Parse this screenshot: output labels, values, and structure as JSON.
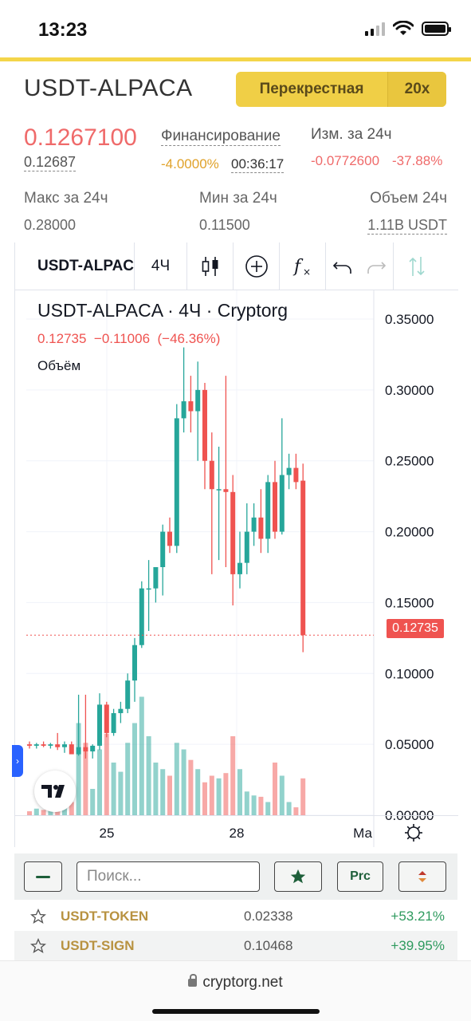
{
  "status_bar": {
    "time": "13:23"
  },
  "header": {
    "pair": "USDT-ALPACA",
    "margin_mode": "Перекрестная",
    "leverage": "20x"
  },
  "stats": {
    "last_price": "0.1267100",
    "mark_price": "0.12687",
    "funding_label": "Финансирование",
    "funding_rate": "-4.0000%",
    "funding_countdown": "00:36:17",
    "change_label": "Изм. за 24ч",
    "change_abs": "-0.0772600",
    "change_pct": "-37.88%",
    "high_label": "Макс за 24ч",
    "high_value": "0.28000",
    "low_label": "Мин за 24ч",
    "low_value": "0.11500",
    "volume_label": "Объем 24ч",
    "volume_value": "1.11B USDT"
  },
  "chart_toolbar": {
    "symbol": "USDT-ALPACA",
    "interval": "4Ч"
  },
  "chart_legend": {
    "title": "USDT-ALPACA · 4Ч · Cryptorg",
    "close": "0.12735",
    "change": "−0.11006",
    "change_pct": "(−46.36%)",
    "volume_label": "Объём"
  },
  "colors": {
    "up": "#26a69a",
    "down": "#ef5350",
    "accent": "#f0cf46",
    "gold_text": "#b89240",
    "positive": "#2e9a5e"
  },
  "chart_data": {
    "type": "candlestick",
    "title": "USDT-ALPACA · 4Ч · Cryptorg",
    "y_ticks": [
      "0.35000",
      "0.30000",
      "0.25000",
      "0.20000",
      "0.15000",
      "0.10000",
      "0.05000",
      "0.00000"
    ],
    "ylim": [
      0,
      0.35
    ],
    "x_ticks": [
      "25",
      "28",
      "Ма"
    ],
    "current_price_label": "0.12735",
    "candles": [
      {
        "o": 0.05,
        "h": 0.052,
        "l": 0.047,
        "c": 0.049,
        "v": 0.03
      },
      {
        "o": 0.049,
        "h": 0.051,
        "l": 0.047,
        "c": 0.05,
        "v": 0.05
      },
      {
        "o": 0.05,
        "h": 0.052,
        "l": 0.048,
        "c": 0.049,
        "v": 0.04
      },
      {
        "o": 0.049,
        "h": 0.051,
        "l": 0.047,
        "c": 0.05,
        "v": 0.05
      },
      {
        "o": 0.05,
        "h": 0.058,
        "l": 0.046,
        "c": 0.048,
        "v": 0.08
      },
      {
        "o": 0.048,
        "h": 0.052,
        "l": 0.044,
        "c": 0.05,
        "v": 0.09
      },
      {
        "o": 0.05,
        "h": 0.052,
        "l": 0.044,
        "c": 0.043,
        "v": 0.1
      },
      {
        "o": 0.043,
        "h": 0.085,
        "l": 0.042,
        "c": 0.048,
        "v": 0.7
      },
      {
        "o": 0.048,
        "h": 0.085,
        "l": 0.04,
        "c": 0.045,
        "v": 0.55
      },
      {
        "o": 0.045,
        "h": 0.05,
        "l": 0.04,
        "c": 0.049,
        "v": 0.2
      },
      {
        "o": 0.049,
        "h": 0.086,
        "l": 0.046,
        "c": 0.078,
        "v": 0.5
      },
      {
        "o": 0.078,
        "h": 0.08,
        "l": 0.055,
        "c": 0.058,
        "v": 0.62
      },
      {
        "o": 0.058,
        "h": 0.075,
        "l": 0.056,
        "c": 0.072,
        "v": 0.4
      },
      {
        "o": 0.072,
        "h": 0.08,
        "l": 0.065,
        "c": 0.075,
        "v": 0.33
      },
      {
        "o": 0.075,
        "h": 0.1,
        "l": 0.072,
        "c": 0.095,
        "v": 0.55
      },
      {
        "o": 0.095,
        "h": 0.125,
        "l": 0.08,
        "c": 0.12,
        "v": 0.7
      },
      {
        "o": 0.12,
        "h": 0.165,
        "l": 0.118,
        "c": 0.16,
        "v": 0.9
      },
      {
        "o": 0.16,
        "h": 0.18,
        "l": 0.13,
        "c": 0.16,
        "v": 0.6
      },
      {
        "o": 0.16,
        "h": 0.175,
        "l": 0.15,
        "c": 0.175,
        "v": 0.4
      },
      {
        "o": 0.175,
        "h": 0.205,
        "l": 0.155,
        "c": 0.2,
        "v": 0.35
      },
      {
        "o": 0.2,
        "h": 0.21,
        "l": 0.185,
        "c": 0.19,
        "v": 0.3
      },
      {
        "o": 0.19,
        "h": 0.29,
        "l": 0.185,
        "c": 0.28,
        "v": 0.55
      },
      {
        "o": 0.28,
        "h": 0.33,
        "l": 0.27,
        "c": 0.292,
        "v": 0.5
      },
      {
        "o": 0.292,
        "h": 0.31,
        "l": 0.27,
        "c": 0.285,
        "v": 0.42
      },
      {
        "o": 0.285,
        "h": 0.32,
        "l": 0.25,
        "c": 0.3,
        "v": 0.35
      },
      {
        "o": 0.3,
        "h": 0.305,
        "l": 0.23,
        "c": 0.25,
        "v": 0.25
      },
      {
        "o": 0.25,
        "h": 0.27,
        "l": 0.17,
        "c": 0.23,
        "v": 0.3
      },
      {
        "o": 0.23,
        "h": 0.26,
        "l": 0.18,
        "c": 0.23,
        "v": 0.28
      },
      {
        "o": 0.23,
        "h": 0.31,
        "l": 0.175,
        "c": 0.228,
        "v": 0.32
      },
      {
        "o": 0.228,
        "h": 0.24,
        "l": 0.148,
        "c": 0.17,
        "v": 0.6
      },
      {
        "o": 0.17,
        "h": 0.2,
        "l": 0.16,
        "c": 0.178,
        "v": 0.35
      },
      {
        "o": 0.178,
        "h": 0.22,
        "l": 0.17,
        "c": 0.2,
        "v": 0.18
      },
      {
        "o": 0.2,
        "h": 0.22,
        "l": 0.19,
        "c": 0.21,
        "v": 0.15
      },
      {
        "o": 0.21,
        "h": 0.23,
        "l": 0.185,
        "c": 0.195,
        "v": 0.14
      },
      {
        "o": 0.195,
        "h": 0.24,
        "l": 0.185,
        "c": 0.235,
        "v": 0.1
      },
      {
        "o": 0.235,
        "h": 0.25,
        "l": 0.195,
        "c": 0.2,
        "v": 0.4
      },
      {
        "o": 0.2,
        "h": 0.28,
        "l": 0.198,
        "c": 0.24,
        "v": 0.3
      },
      {
        "o": 0.24,
        "h": 0.255,
        "l": 0.23,
        "c": 0.245,
        "v": 0.1
      },
      {
        "o": 0.245,
        "h": 0.255,
        "l": 0.23,
        "c": 0.235,
        "v": 0.06
      },
      {
        "o": 0.236,
        "h": 0.248,
        "l": 0.115,
        "c": 0.127,
        "v": 0.28
      }
    ]
  },
  "controls": {
    "search_placeholder": "Поиск...",
    "prc_label": "Prc"
  },
  "market_list": [
    {
      "ticker": "USDT-TOKEN",
      "price": "0.02338",
      "change": "+53.21%"
    },
    {
      "ticker": "USDT-SIGN",
      "price": "0.10468",
      "change": "+39.95%"
    }
  ],
  "browser": {
    "url": "cryptorg.net"
  }
}
